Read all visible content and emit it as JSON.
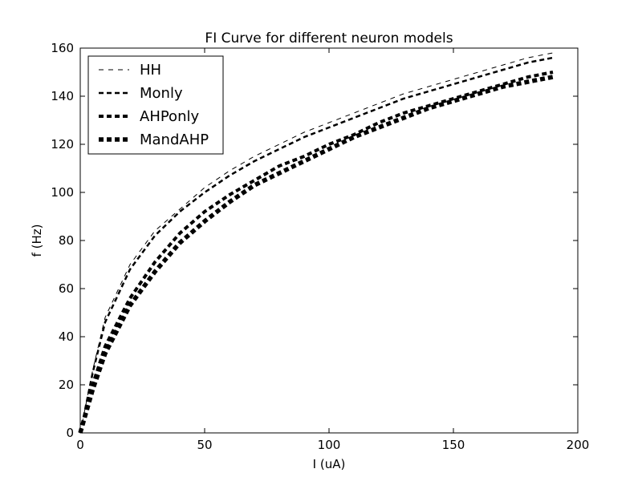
{
  "chart_data": {
    "type": "line",
    "title": "FI Curve for different neuron models",
    "xlabel": "I (uA)",
    "ylabel": "f (Hz)",
    "xlim": [
      0,
      200
    ],
    "ylim": [
      0,
      160
    ],
    "xticks": [
      0,
      50,
      100,
      150,
      200
    ],
    "yticks": [
      0,
      20,
      40,
      60,
      80,
      100,
      120,
      140,
      160
    ],
    "grid": false,
    "legend_position": "upper-left",
    "x": [
      0,
      5,
      10,
      20,
      30,
      40,
      50,
      60,
      70,
      80,
      90,
      100,
      110,
      120,
      130,
      140,
      150,
      160,
      170,
      180,
      190
    ],
    "series": [
      {
        "name": "HH",
        "values": [
          0,
          26,
          48,
          70,
          84,
          93,
          102,
          109,
          115,
          120,
          125,
          129,
          133,
          137,
          141,
          144,
          147,
          150,
          153,
          156,
          158
        ]
      },
      {
        "name": "Monly",
        "values": [
          0,
          25,
          46,
          68,
          82,
          92,
          100,
          107,
          113,
          118,
          123,
          127,
          131,
          135,
          139,
          142,
          145,
          148,
          151,
          154,
          156
        ]
      },
      {
        "name": "AHPonly",
        "values": [
          0,
          20,
          36,
          56,
          71,
          83,
          92,
          99,
          105,
          111,
          115,
          120,
          124,
          129,
          133,
          136,
          139,
          142,
          145,
          148,
          150
        ]
      },
      {
        "name": "MandAHP",
        "values": [
          0,
          18,
          33,
          53,
          67,
          79,
          88,
          96,
          103,
          108,
          113,
          118,
          123,
          127,
          131,
          135,
          138,
          141,
          144,
          146,
          148
        ]
      }
    ]
  }
}
